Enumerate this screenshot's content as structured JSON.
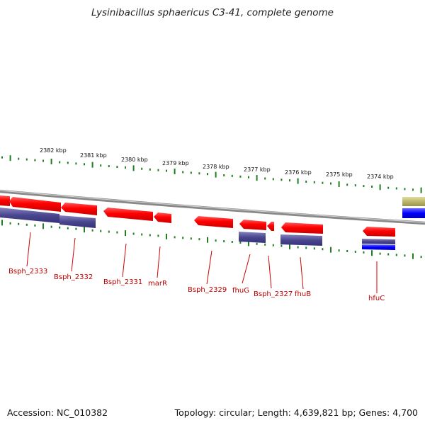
{
  "title": "Lysinibacillus sphaericus C3-41, complete genome",
  "footer": {
    "accession": "Accession: NC_010382",
    "topology": "Topology: circular; Length: 4,639,821 bp; Genes: 4,700"
  },
  "colors": {
    "cds": "#ff0000",
    "rna": "#4a468e",
    "blue_feature": "#0000ff",
    "khaki_feature": "#bdb76b",
    "backbone": "#8c8c8c",
    "ticks": "#1f7f1f",
    "labels": "#c00000"
  },
  "ruler": {
    "unit": "kbp",
    "labels": [
      "2382 kbp",
      "2381 kbp",
      "2380 kbp",
      "2379 kbp",
      "2378 kbp",
      "2377 kbp",
      "2376 kbp",
      "2375 kbp",
      "2374 kbp"
    ]
  },
  "genes": [
    {
      "label": "Bsph_2333"
    },
    {
      "label": "Bsph_2332"
    },
    {
      "label": "Bsph_2331"
    },
    {
      "label": "marR"
    },
    {
      "label": "Bsph_2329"
    },
    {
      "label": "fhuG"
    },
    {
      "label": "Bsph_2327"
    },
    {
      "label": "fhuB"
    },
    {
      "label": "hfuC"
    }
  ]
}
